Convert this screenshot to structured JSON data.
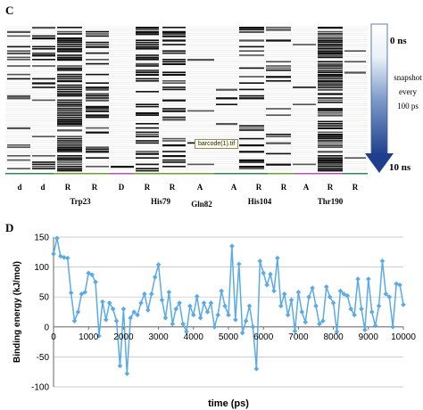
{
  "panel_c": {
    "label": "C",
    "columns": [
      {
        "code": "d",
        "x": 22
      },
      {
        "code": "d",
        "x": 48
      },
      {
        "code": "R",
        "x": 76
      },
      {
        "code": "R",
        "x": 106
      },
      {
        "code": "D",
        "x": 136
      },
      {
        "code": "R",
        "x": 165
      },
      {
        "code": "R",
        "x": 193
      },
      {
        "code": "A",
        "x": 224
      },
      {
        "code": "A",
        "x": 262
      },
      {
        "code": "R",
        "x": 290
      },
      {
        "code": "R",
        "x": 318
      },
      {
        "code": "A",
        "x": 343
      },
      {
        "code": "R",
        "x": 370
      },
      {
        "code": "R",
        "x": 398
      }
    ],
    "residues": [
      {
        "name": "Trp23",
        "x": 90
      },
      {
        "name": "His79",
        "x": 180
      },
      {
        "name": "Gln82",
        "x": 226
      },
      {
        "name": "His104",
        "x": 291
      },
      {
        "name": "Thr190",
        "x": 370
      }
    ],
    "legend": {
      "top": "0 ns",
      "bottom": "10 ns",
      "line1": "snapshot",
      "line2": "every",
      "line3": "100 ps"
    },
    "tooltip": "barcode(1).tif"
  },
  "chart_data": {
    "type": "line",
    "panel_label": "D",
    "xlabel": "time (ps)",
    "ylabel": "Binding energy (kJ/mol)",
    "xlim": [
      0,
      10000
    ],
    "ylim": [
      -100,
      150
    ],
    "xticks": [
      0,
      1000,
      2000,
      3000,
      4000,
      5000,
      6000,
      7000,
      8000,
      9000,
      10000
    ],
    "yticks": [
      150,
      100,
      50,
      0,
      -50,
      -100
    ],
    "grid": "horizontal",
    "line_color": "#5aaae6",
    "marker": "diamond",
    "x": [
      0,
      100,
      200,
      300,
      400,
      500,
      600,
      700,
      800,
      900,
      1000,
      1100,
      1200,
      1300,
      1400,
      1500,
      1600,
      1700,
      1800,
      1900,
      2000,
      2100,
      2200,
      2300,
      2400,
      2500,
      2600,
      2700,
      2800,
      2900,
      3000,
      3100,
      3200,
      3300,
      3400,
      3500,
      3600,
      3700,
      3800,
      3900,
      4000,
      4100,
      4200,
      4300,
      4400,
      4500,
      4600,
      4700,
      4800,
      4900,
      5000,
      5100,
      5200,
      5300,
      5400,
      5500,
      5600,
      5700,
      5800,
      5900,
      6000,
      6100,
      6200,
      6300,
      6400,
      6500,
      6600,
      6700,
      6800,
      6900,
      7000,
      7100,
      7200,
      7300,
      7400,
      7500,
      7600,
      7700,
      7800,
      7900,
      8000,
      8100,
      8200,
      8300,
      8400,
      8500,
      8600,
      8700,
      8800,
      8900,
      9000,
      9100,
      9200,
      9300,
      9400,
      9500,
      9600,
      9700,
      9800,
      9900,
      10000
    ],
    "values": [
      122,
      148,
      118,
      116,
      115,
      57,
      10,
      25,
      55,
      58,
      90,
      87,
      75,
      -15,
      42,
      12,
      40,
      30,
      10,
      -65,
      30,
      -78,
      15,
      25,
      20,
      40,
      55,
      28,
      55,
      83,
      104,
      45,
      15,
      58,
      5,
      30,
      40,
      5,
      -8,
      35,
      20,
      51,
      15,
      40,
      25,
      40,
      0,
      20,
      60,
      35,
      20,
      135,
      12,
      105,
      -10,
      10,
      35,
      0,
      -70,
      110,
      90,
      70,
      88,
      60,
      115,
      35,
      55,
      20,
      45,
      -7,
      58,
      25,
      8,
      50,
      65,
      35,
      5,
      10,
      67,
      50,
      40,
      -8,
      60,
      55,
      52,
      30,
      20,
      80,
      30,
      -5,
      80,
      25,
      2,
      35,
      110,
      55,
      50,
      0,
      72,
      70,
      37
    ]
  }
}
